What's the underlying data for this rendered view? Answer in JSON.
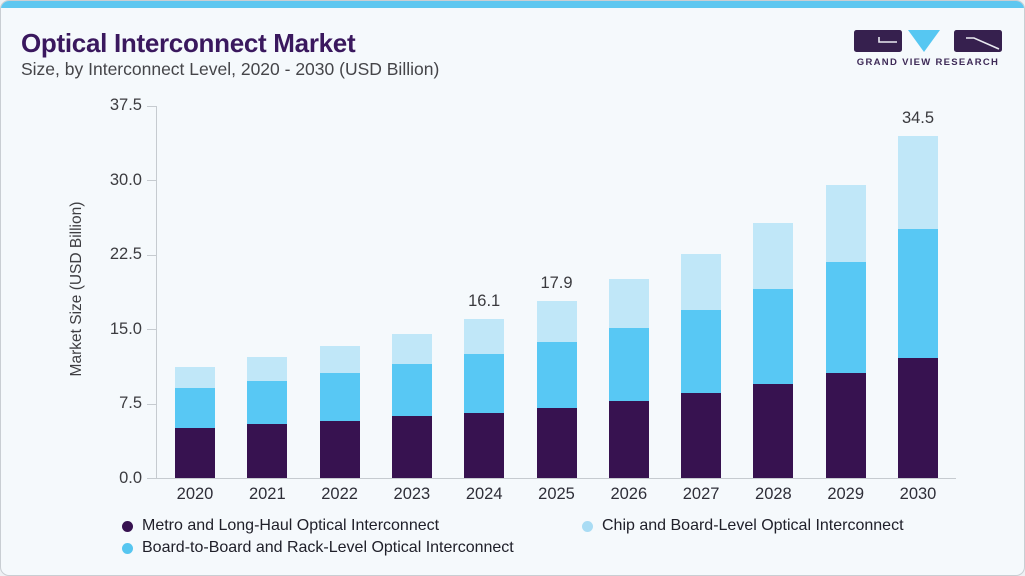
{
  "header": {
    "title": "Optical Interconnect Market",
    "subtitle": "Size, by Interconnect Level, 2020 - 2030 (USD Billion)"
  },
  "brand": {
    "name": "GRAND VIEW RESEARCH",
    "logo_colors": {
      "block": "#36204e",
      "triangle": "#56c7f2"
    }
  },
  "colors": {
    "accent_stripe": "#5ec7f0",
    "title_purple": "#3a185e",
    "axis_line": "#c6cbd0"
  },
  "chart_data": {
    "type": "bar",
    "stacked": true,
    "title": "Optical Interconnect Market Size, by Interconnect Level, 2020 - 2030 (USD Billion)",
    "xlabel": "",
    "ylabel": "Market Size (USD Billion)",
    "ylim": [
      0,
      37.5
    ],
    "ytick_values": [
      0,
      7.5,
      15,
      22.5,
      30,
      37.5
    ],
    "ytick_labels": [
      "0.0",
      "7.5",
      "15.0",
      "22.5",
      "30.0",
      "37.5"
    ],
    "grid": false,
    "categories": [
      "2020",
      "2021",
      "2022",
      "2023",
      "2024",
      "2025",
      "2026",
      "2027",
      "2028",
      "2029",
      "2030"
    ],
    "series": [
      {
        "name": "Metro and Long-Haul Optical Interconnect",
        "color": "#371250",
        "values": [
          5.1,
          5.5,
          5.8,
          6.3,
          6.6,
          7.1,
          7.8,
          8.6,
          9.5,
          10.6,
          12.1
        ]
      },
      {
        "name": "Board-to-Board and Rack-Level Optical Interconnect",
        "color": "#58c8f4",
        "values": [
          4.0,
          4.3,
          4.8,
          5.2,
          5.9,
          6.6,
          7.4,
          8.4,
          9.6,
          11.2,
          13.0
        ]
      },
      {
        "name": "Chip and Board-Level Optical Interconnect",
        "color": "#c0e7f8",
        "values": [
          2.1,
          2.4,
          2.7,
          3.1,
          3.6,
          4.2,
          4.9,
          5.6,
          6.6,
          7.8,
          9.4
        ]
      }
    ],
    "total_labels": {
      "2024": "16.1",
      "2025": "17.9",
      "2030": "34.5"
    },
    "legend": {
      "position": "bottom",
      "marker": "circle",
      "items": [
        {
          "label": "Metro and Long-Haul Optical Interconnect",
          "color": "#371250"
        },
        {
          "label": "Chip and Board-Level Optical Interconnect",
          "color": "#a9dcf4"
        },
        {
          "label": "Board-to-Board and Rack-Level Optical Interconnect",
          "color": "#56c6f0"
        }
      ]
    }
  }
}
